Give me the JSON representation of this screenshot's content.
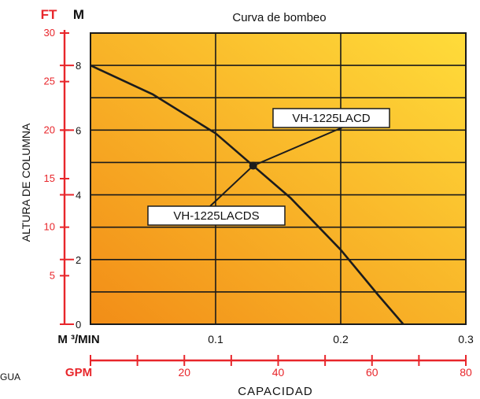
{
  "chart_data": {
    "type": "line",
    "title": "Curva de bombeo",
    "y_units": {
      "ft_label": "FT",
      "m_label": "M"
    },
    "ylabel": "ALTURA DE COLUMNA",
    "xlabel": "CAPACIDAD",
    "x_unit_m3": "M ³/MIN",
    "x_unit_gpm": "GPM",
    "left_fragment": "GUA",
    "x_m3_ticks": [
      "0.1",
      "0.2",
      "0.3"
    ],
    "x_m3_range": [
      0,
      0.3
    ],
    "gpm_ticks": [
      "20",
      "40",
      "60",
      "80"
    ],
    "gpm_range": [
      0,
      80
    ],
    "y_m_ticks": [
      "0",
      "2",
      "4",
      "6",
      "8"
    ],
    "y_m_range": [
      0,
      9
    ],
    "y_ft_ticks": [
      "5",
      "10",
      "15",
      "20",
      "25",
      "30"
    ],
    "y_ft_range": [
      0,
      30
    ],
    "grid": true,
    "series": [
      {
        "x": [
          0,
          0.05,
          0.1,
          0.13,
          0.16,
          0.2,
          0.23,
          0.25
        ],
        "y": [
          8,
          7.1,
          5.9,
          4.9,
          3.9,
          2.3,
          0.9,
          0
        ]
      }
    ],
    "annotations": [
      {
        "text": "VH-1225LACD",
        "x": 0.13,
        "y": 4.9
      },
      {
        "text": "VH-1225LACDS",
        "x": 0.13,
        "y": 4.9
      }
    ],
    "colors": {
      "axis_red": "#e8262b",
      "grid": "#1a1a1a",
      "gradient_dark": "#f28d17",
      "gradient_light": "#ffdc3a"
    }
  }
}
